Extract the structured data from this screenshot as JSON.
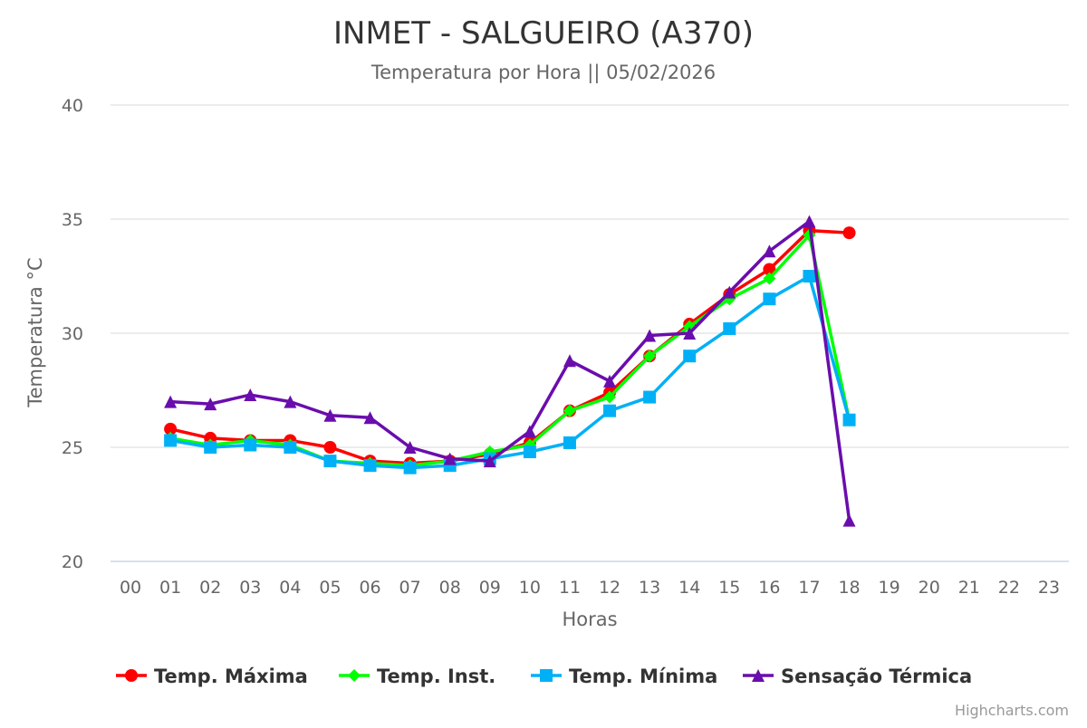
{
  "chart_data": {
    "type": "line",
    "title": "INMET - SALGUEIRO (A370)",
    "subtitle": "Temperatura por Hora || 05/02/2026",
    "xlabel": "Horas",
    "ylabel": "Temperatura °C",
    "categories": [
      "00",
      "01",
      "02",
      "03",
      "04",
      "05",
      "06",
      "07",
      "08",
      "09",
      "10",
      "11",
      "12",
      "13",
      "14",
      "15",
      "16",
      "17",
      "18",
      "19",
      "20",
      "21",
      "22",
      "23"
    ],
    "ylim": [
      20,
      40
    ],
    "yticks": [
      20,
      25,
      30,
      35,
      40
    ],
    "grid": true,
    "legend_position": "bottom",
    "series": [
      {
        "name": "Temp. Máxima",
        "color": "#ff0000",
        "marker": "circle",
        "values": [
          null,
          25.8,
          25.4,
          25.3,
          25.3,
          25.0,
          24.4,
          24.3,
          24.4,
          24.7,
          25.2,
          26.6,
          27.4,
          29.0,
          30.4,
          31.7,
          32.8,
          34.5,
          34.4,
          null,
          null,
          null,
          null,
          null
        ]
      },
      {
        "name": "Temp. Inst.",
        "color": "#00ff00",
        "marker": "diamond",
        "values": [
          null,
          25.4,
          25.1,
          25.3,
          25.1,
          24.4,
          24.3,
          24.2,
          24.4,
          24.8,
          25.1,
          26.6,
          27.2,
          29.0,
          30.3,
          31.5,
          32.4,
          34.3,
          26.2,
          null,
          null,
          null,
          null,
          null
        ]
      },
      {
        "name": "Temp. Mínima",
        "color": "#00b0f6",
        "marker": "square",
        "values": [
          null,
          25.3,
          25.0,
          25.1,
          25.0,
          24.4,
          24.2,
          24.1,
          24.2,
          24.5,
          24.8,
          25.2,
          26.6,
          27.2,
          29.0,
          30.2,
          31.5,
          32.5,
          26.2,
          null,
          null,
          null,
          null,
          null
        ]
      },
      {
        "name": "Sensação Térmica",
        "color": "#6a0dad",
        "marker": "triangle",
        "values": [
          null,
          27.0,
          26.9,
          27.3,
          27.0,
          26.4,
          26.3,
          25.0,
          24.5,
          24.4,
          25.7,
          28.8,
          27.9,
          29.9,
          30.0,
          31.8,
          33.6,
          34.9,
          21.8,
          null,
          null,
          null,
          null,
          null
        ]
      }
    ]
  },
  "credits": "Highcharts.com"
}
